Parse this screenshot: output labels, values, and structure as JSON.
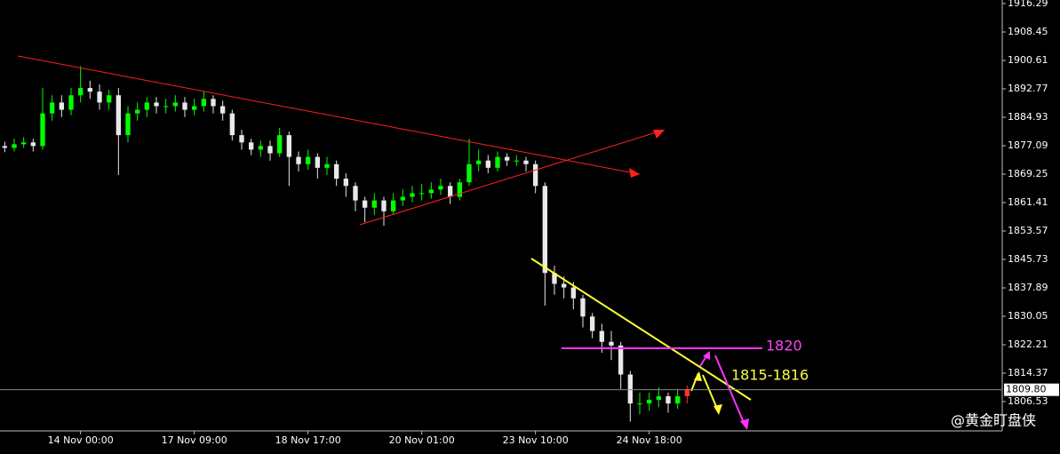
{
  "chart_data": {
    "type": "candlestick",
    "x": [
      0,
      1,
      2,
      3,
      4,
      5,
      6,
      7,
      8,
      9,
      10,
      11,
      12,
      13,
      14,
      15,
      16,
      17,
      18,
      19,
      20,
      21,
      22,
      23,
      24,
      25,
      26,
      27,
      28,
      29,
      30,
      31,
      32,
      33,
      34,
      35,
      36,
      37,
      38,
      39,
      40,
      41,
      42,
      43,
      44,
      45,
      46,
      47,
      48,
      49,
      50,
      51,
      52,
      53,
      54,
      55,
      56,
      57,
      58,
      59,
      60,
      61,
      62,
      63,
      64,
      65,
      66,
      67,
      68,
      69,
      70,
      71,
      72
    ],
    "open": [
      1877,
      1876.5,
      1877.5,
      1878,
      1877,
      1886,
      1889,
      1887,
      1891,
      1893,
      1892,
      1889,
      1891,
      1880,
      1886,
      1887,
      1889,
      1888,
      1888,
      1889,
      1887,
      1888,
      1890,
      1888,
      1886,
      1880,
      1878,
      1876,
      1877,
      1875,
      1880,
      1874,
      1872,
      1874,
      1871,
      1872,
      1868,
      1866,
      1862,
      1860,
      1862,
      1859,
      1862,
      1863,
      1864,
      1864,
      1865,
      1866,
      1863,
      1867,
      1872,
      1873,
      1871,
      1874,
      1873,
      1873,
      1872,
      1866,
      1842,
      1839,
      1838,
      1835,
      1830,
      1826,
      1823,
      1822,
      1814,
      1806,
      1806,
      1807,
      1808,
      1806,
      1808
    ],
    "high": [
      1878.2,
      1879,
      1879.5,
      1879,
      1893,
      1891,
      1891,
      1893,
      1899,
      1895,
      1894,
      1892.5,
      1893,
      1888,
      1889,
      1890.5,
      1890.5,
      1890,
      1891,
      1890.5,
      1890,
      1892,
      1891,
      1889.5,
      1887,
      1881.5,
      1879,
      1878.5,
      1878.5,
      1882,
      1881,
      1875.5,
      1876,
      1875,
      1874,
      1873,
      1869.5,
      1867,
      1863,
      1864,
      1863,
      1864,
      1865,
      1866,
      1866.5,
      1867,
      1868,
      1867,
      1868,
      1879,
      1876,
      1874.5,
      1875.5,
      1875,
      1874.5,
      1874,
      1873,
      1867,
      1844,
      1841,
      1839.5,
      1836,
      1831,
      1828,
      1826,
      1823,
      1815,
      1809,
      1809,
      1810.5,
      1809,
      1810,
      1811
    ],
    "low": [
      1875.3,
      1875.5,
      1876.5,
      1875.5,
      1876,
      1884,
      1885,
      1885.5,
      1889,
      1890,
      1887,
      1887,
      1869,
      1878,
      1884,
      1885,
      1886,
      1886,
      1886.5,
      1885,
      1885.5,
      1886.5,
      1886,
      1884,
      1878.5,
      1876,
      1874.5,
      1874,
      1873,
      1874,
      1866,
      1870,
      1870.5,
      1868,
      1869,
      1866,
      1863,
      1859,
      1856,
      1858,
      1855,
      1858,
      1860.5,
      1861.5,
      1862,
      1862.5,
      1863.5,
      1861,
      1862,
      1866,
      1870,
      1869.5,
      1870,
      1871.5,
      1871.5,
      1870,
      1864,
      1833,
      1836,
      1835,
      1832,
      1827,
      1824,
      1820,
      1818,
      1810,
      1801,
      1803,
      1804,
      1805,
      1803.5,
      1804.5,
      1806
    ],
    "close": [
      1876.5,
      1877.5,
      1878,
      1877,
      1886,
      1889,
      1887,
      1891,
      1893,
      1892,
      1889,
      1891,
      1880,
      1886,
      1887,
      1889,
      1888,
      1888,
      1889,
      1887,
      1888,
      1890,
      1888,
      1886,
      1880,
      1878,
      1876,
      1877,
      1875,
      1880,
      1874,
      1872,
      1874,
      1871,
      1872,
      1868,
      1866,
      1862,
      1860,
      1862,
      1859,
      1862,
      1863,
      1864,
      1864,
      1865,
      1866,
      1863,
      1867,
      1872,
      1873,
      1871,
      1874,
      1873,
      1873,
      1872,
      1866,
      1842,
      1839,
      1838,
      1835,
      1830,
      1826,
      1823,
      1822,
      1814,
      1806,
      1806,
      1807,
      1808,
      1806,
      1808,
      1809.8
    ],
    "up_color": "#00ff00",
    "down_color": "#e8e8e8",
    "last_color": "#ff3030",
    "xlim": [
      -0.5,
      105.25
    ],
    "xticks": [
      {
        "value": 8,
        "label": "14 Nov 00:00"
      },
      {
        "value": 20,
        "label": "17 Nov 09:00"
      },
      {
        "value": 32,
        "label": "18 Nov 17:00"
      },
      {
        "value": 44,
        "label": "20 Nov 01:00"
      },
      {
        "value": 56,
        "label": "23 Nov 10:00"
      },
      {
        "value": 68,
        "label": "24 Nov 18:00"
      }
    ],
    "ylim": [
      1798.45,
      1917.27
    ],
    "yticks": [
      1916.29,
      1908.45,
      1900.61,
      1892.77,
      1884.93,
      1877.09,
      1869.25,
      1861.41,
      1853.57,
      1845.73,
      1837.89,
      1830.05,
      1822.21,
      1814.37,
      1806.53
    ],
    "last_price": {
      "value": 1809.8,
      "label": "1809.80"
    },
    "annotations": [
      "1820",
      "1815-1816"
    ],
    "watermark": "@黄金盯盘侠"
  }
}
